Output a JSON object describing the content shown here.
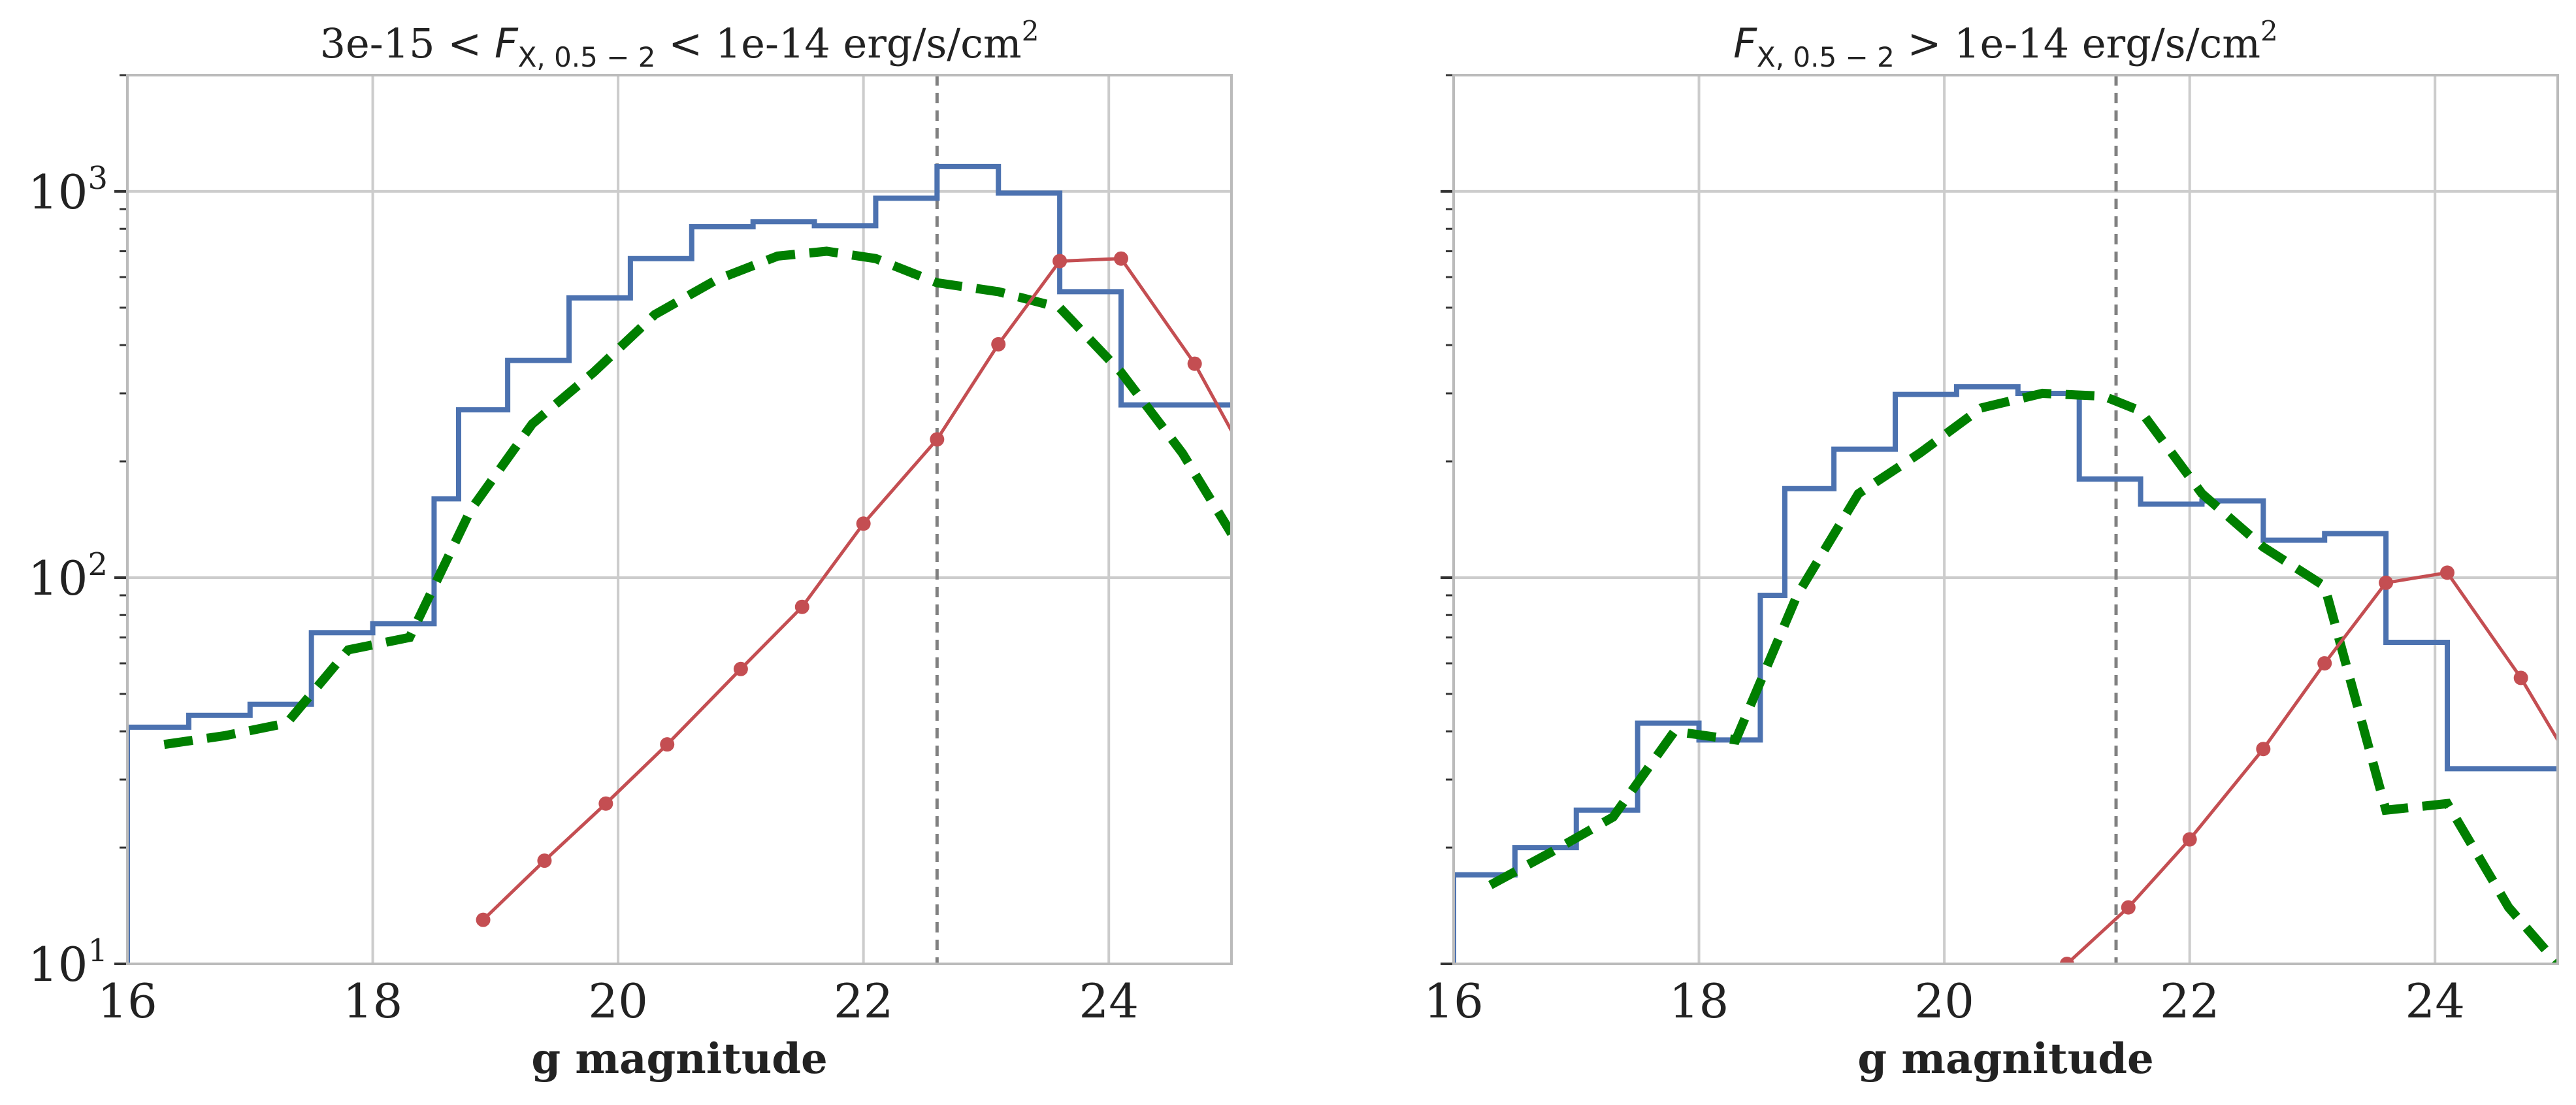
{
  "figure": {
    "colors": {
      "histogram": "#4c72b0",
      "dashed": "#007f00",
      "markers": "#c44e52",
      "vline": "#808080",
      "grid": "#cccccc",
      "spine": "#bbbbbb"
    }
  },
  "chart_data": [
    {
      "type": "line",
      "title_parts": [
        "3e-15 < ",
        "F",
        "X, 0.5 − 2",
        " < 1e-14 erg/s/cm",
        "2"
      ],
      "xlabel": "g magnitude",
      "ylabel": "",
      "xlim": [
        16,
        25
      ],
      "ylim": [
        10,
        2000
      ],
      "yscale": "log",
      "grid": true,
      "xticks": [
        16,
        18,
        20,
        22,
        24
      ],
      "xtick_labels": [
        "16",
        "18",
        "20",
        "22",
        "24"
      ],
      "yticks": [
        10,
        100,
        1000
      ],
      "ytick_labels": [
        [
          "10",
          "1"
        ],
        [
          "10",
          "2"
        ],
        [
          "10",
          "3"
        ]
      ],
      "vline_x": 22.6,
      "series": [
        {
          "style": "step",
          "edges": [
            16.0,
            16.5,
            17.0,
            17.5,
            18.0,
            18.5,
            18.7,
            19.1,
            19.6,
            20.1,
            20.6,
            21.1,
            21.6,
            22.1,
            22.6,
            23.1,
            23.6,
            24.1,
            24.6,
            25.0
          ],
          "values": [
            41,
            44,
            47,
            72,
            76,
            160,
            272,
            365,
            530,
            670,
            810,
            835,
            815,
            960,
            1160,
            990,
            550,
            280,
            280
          ]
        },
        {
          "style": "dashed",
          "x": [
            16.3,
            16.8,
            17.3,
            17.8,
            18.3,
            18.8,
            19.3,
            19.8,
            20.3,
            20.8,
            21.3,
            21.7,
            22.1,
            22.6,
            23.1,
            23.6,
            24.1,
            24.6,
            25.0
          ],
          "y": [
            37,
            39,
            42,
            65,
            70,
            150,
            250,
            340,
            480,
            590,
            680,
            700,
            670,
            580,
            550,
            500,
            340,
            210,
            130
          ]
        },
        {
          "style": "markers",
          "x": [
            18.9,
            19.4,
            19.9,
            20.4,
            21.0,
            21.5,
            22.0,
            22.6,
            23.1,
            23.6,
            24.1,
            24.7,
            25.0
          ],
          "y": [
            13,
            18.5,
            26,
            37,
            58,
            84,
            138,
            228,
            402,
            660,
            670,
            358,
            240
          ]
        }
      ]
    },
    {
      "type": "line",
      "title_parts": [
        "",
        "F",
        "X, 0.5 − 2",
        " > 1e-14 erg/s/cm",
        "2"
      ],
      "xlabel": "g magnitude",
      "ylabel": "",
      "xlim": [
        16,
        25
      ],
      "ylim": [
        10,
        2000
      ],
      "yscale": "log",
      "grid": true,
      "xticks": [
        16,
        18,
        20,
        22,
        24
      ],
      "xtick_labels": [
        "16",
        "18",
        "20",
        "22",
        "24"
      ],
      "yticks": [
        10,
        100,
        1000
      ],
      "ytick_labels": [],
      "vline_x": 21.4,
      "series": [
        {
          "style": "step",
          "edges": [
            16.0,
            16.5,
            17.0,
            17.5,
            18.0,
            18.5,
            18.7,
            19.1,
            19.6,
            20.1,
            20.6,
            21.1,
            21.6,
            22.1,
            22.6,
            23.1,
            23.6,
            24.1,
            24.6,
            25.0
          ],
          "values": [
            17,
            20,
            25,
            42,
            38,
            90,
            170,
            215,
            298,
            312,
            300,
            180,
            155,
            158,
            125,
            130,
            68,
            32,
            32
          ]
        },
        {
          "style": "dashed",
          "x": [
            16.3,
            16.8,
            17.3,
            17.8,
            18.3,
            18.8,
            19.3,
            19.8,
            20.3,
            20.8,
            21.3,
            21.6,
            22.1,
            22.6,
            23.1,
            23.6,
            24.1,
            24.6,
            25.0
          ],
          "y": [
            16,
            19.5,
            24,
            40,
            38,
            90,
            165,
            210,
            275,
            300,
            295,
            270,
            165,
            120,
            95,
            25,
            26,
            14,
            10
          ]
        },
        {
          "style": "markers",
          "x": [
            21.0,
            21.5,
            22.0,
            22.6,
            23.1,
            23.6,
            24.1,
            24.7,
            25.0
          ],
          "y": [
            10,
            14,
            21,
            36,
            60,
            97,
            103,
            55,
            38
          ]
        }
      ]
    }
  ]
}
